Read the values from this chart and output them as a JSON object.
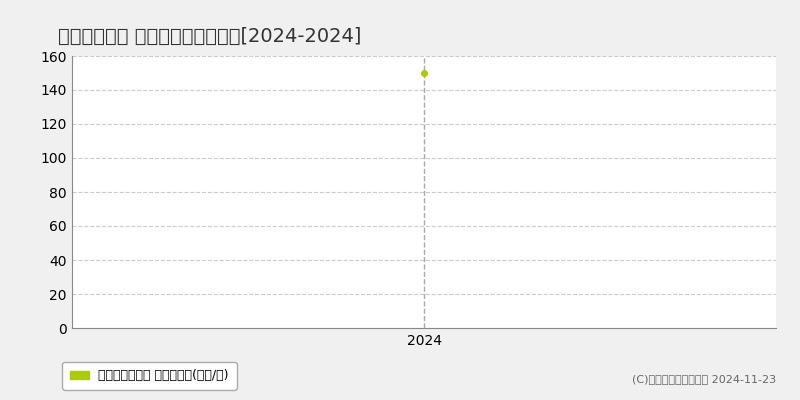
{
  "title": "糸満市西川町 マンション価格推移[2024-2024]",
  "years": [
    2024
  ],
  "values": [
    150
  ],
  "ylim": [
    0,
    160
  ],
  "yticks": [
    0,
    20,
    40,
    60,
    80,
    100,
    120,
    140,
    160
  ],
  "xlim_left": 2022.5,
  "xlim_right": 2025.5,
  "line_color": "#aacc00",
  "marker_color": "#aacc00",
  "grid_color": "#cccccc",
  "bg_color": "#f0f0f0",
  "plot_bg_color": "#ffffff",
  "vline_color": "#aaaaaa",
  "legend_label": "マンション価格 平均坪単価(万円/坪)",
  "copyright_text": "(C)土地価格ドットコム 2024-11-23",
  "title_fontsize": 14,
  "axis_fontsize": 10,
  "legend_fontsize": 9,
  "copyright_fontsize": 8
}
